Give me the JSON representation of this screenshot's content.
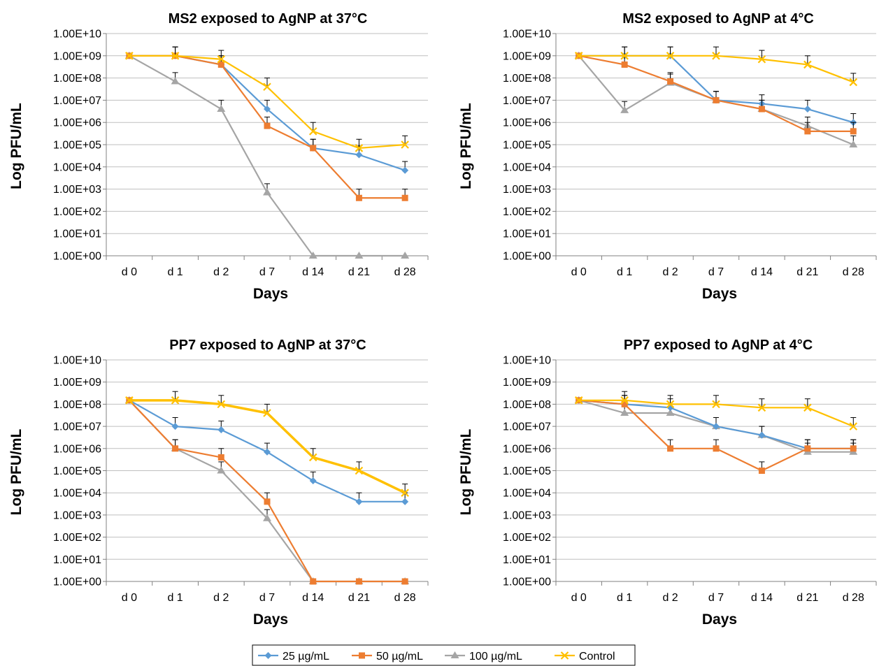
{
  "chart_data": [
    {
      "type": "line",
      "title": "MS2 exposed to AgNP at 37°C",
      "xlabel": "Days",
      "ylabel": "Log PFU/mL",
      "yscale": "log",
      "ylim": [
        1,
        10000000000
      ],
      "y_ticks": [
        "1.00E+00",
        "1.00E+01",
        "1.00E+02",
        "1.00E+03",
        "1.00E+04",
        "1.00E+05",
        "1.00E+06",
        "1.00E+07",
        "1.00E+08",
        "1.00E+09",
        "1.00E+10"
      ],
      "categories": [
        "d 0",
        "d 1",
        "d 2",
        "d 7",
        "d 14",
        "d 21",
        "d 28"
      ],
      "grid": true,
      "series": [
        {
          "name": "25 µg/mL",
          "values": [
            1000000000,
            1000000000,
            400000000,
            4000000,
            70000,
            35000,
            7000
          ]
        },
        {
          "name": "50 µg/mL",
          "values": [
            1000000000,
            1000000000,
            400000000,
            700000,
            70000,
            400,
            400
          ]
        },
        {
          "name": "100 µg/mL",
          "values": [
            1000000000,
            70000000,
            4000000,
            700,
            1,
            1,
            1
          ]
        },
        {
          "name": "Control",
          "values": [
            1000000000,
            1000000000,
            700000000,
            40000000,
            400000,
            70000,
            100000
          ]
        }
      ]
    },
    {
      "type": "line",
      "title": "MS2 exposed to AgNP at 4°C",
      "xlabel": "Days",
      "ylabel": "Log PFU/mL",
      "yscale": "log",
      "ylim": [
        1,
        10000000000
      ],
      "y_ticks": [
        "1.00E+00",
        "1.00E+01",
        "1.00E+02",
        "1.00E+03",
        "1.00E+04",
        "1.00E+05",
        "1.00E+06",
        "1.00E+07",
        "1.00E+08",
        "1.00E+09",
        "1.00E+10"
      ],
      "categories": [
        "d 0",
        "d 1",
        "d 2",
        "d 7",
        "d 14",
        "d 21",
        "d 28"
      ],
      "grid": true,
      "series": [
        {
          "name": "25 µg/mL",
          "values": [
            1000000000,
            1000000000,
            1000000000,
            10000000,
            7000000,
            4000000,
            1000000
          ]
        },
        {
          "name": "50 µg/mL",
          "values": [
            1000000000,
            400000000,
            70000000,
            10000000,
            4000000,
            400000,
            400000
          ]
        },
        {
          "name": "100 µg/mL",
          "values": [
            1000000000,
            3500000,
            60000000,
            10000000,
            4000000,
            700000,
            100000
          ]
        },
        {
          "name": "Control",
          "values": [
            1000000000,
            1000000000,
            1000000000,
            1000000000,
            700000000,
            400000000,
            65000000
          ]
        }
      ]
    },
    {
      "type": "line",
      "title": "PP7 exposed to AgNP at 37°C",
      "xlabel": "Days",
      "ylabel": "Log PFU/mL",
      "yscale": "log",
      "ylim": [
        1,
        10000000000
      ],
      "y_ticks": [
        "1.00E+00",
        "1.00E+01",
        "1.00E+02",
        "1.00E+03",
        "1.00E+04",
        "1.00E+05",
        "1.00E+06",
        "1.00E+07",
        "1.00E+08",
        "1.00E+09",
        "1.00E+10"
      ],
      "categories": [
        "d 0",
        "d 1",
        "d 2",
        "d 7",
        "d 14",
        "d 21",
        "d 28"
      ],
      "grid": true,
      "series": [
        {
          "name": "25 µg/mL",
          "values": [
            150000000,
            10000000,
            7000000,
            700000,
            35000,
            4000,
            4000
          ]
        },
        {
          "name": "50 µg/mL",
          "values": [
            150000000,
            1000000,
            400000,
            4000,
            1,
            1,
            1
          ]
        },
        {
          "name": "100 µg/mL",
          "values": [
            150000000,
            1000000,
            100000,
            700,
            1,
            1,
            1
          ]
        },
        {
          "name": "Control",
          "values": [
            150000000,
            150000000,
            100000000,
            40000000,
            400000,
            100000,
            10000
          ]
        }
      ]
    },
    {
      "type": "line",
      "title": "PP7 exposed to AgNP at 4°C",
      "xlabel": "Days",
      "ylabel": "Log PFU/mL",
      "yscale": "log",
      "ylim": [
        1,
        10000000000
      ],
      "y_ticks": [
        "1.00E+00",
        "1.00E+01",
        "1.00E+02",
        "1.00E+03",
        "1.00E+04",
        "1.00E+05",
        "1.00E+06",
        "1.00E+07",
        "1.00E+08",
        "1.00E+09",
        "1.00E+10"
      ],
      "categories": [
        "d 0",
        "d 1",
        "d 2",
        "d 7",
        "d 14",
        "d 21",
        "d 28"
      ],
      "grid": true,
      "series": [
        {
          "name": "25 µg/mL",
          "values": [
            150000000,
            100000000,
            70000000,
            10000000,
            4000000,
            1000000,
            1000000
          ]
        },
        {
          "name": "50 µg/mL",
          "values": [
            150000000,
            100000000,
            1000000,
            1000000,
            100000,
            1000000,
            1000000
          ]
        },
        {
          "name": "100 µg/mL",
          "values": [
            150000000,
            40000000,
            40000000,
            10000000,
            4000000,
            700000,
            700000
          ]
        },
        {
          "name": "Control",
          "values": [
            150000000,
            150000000,
            100000000,
            100000000,
            70000000,
            70000000,
            10000000
          ]
        }
      ]
    }
  ],
  "legend": {
    "placement": "bottom-center",
    "items": [
      {
        "label": "25 µg/mL",
        "color": "#5B9BD5",
        "marker": "diamond"
      },
      {
        "label": "50 µg/mL",
        "color": "#ED7D31",
        "marker": "square"
      },
      {
        "label": "100 µg/mL",
        "color": "#A5A5A5",
        "marker": "triangle"
      },
      {
        "label": "Control",
        "color": "#FFC000",
        "marker": "x"
      }
    ]
  },
  "series_colors": [
    "#5B9BD5",
    "#ED7D31",
    "#A5A5A5",
    "#FFC000"
  ],
  "gridline_color": "#BFBFBF"
}
